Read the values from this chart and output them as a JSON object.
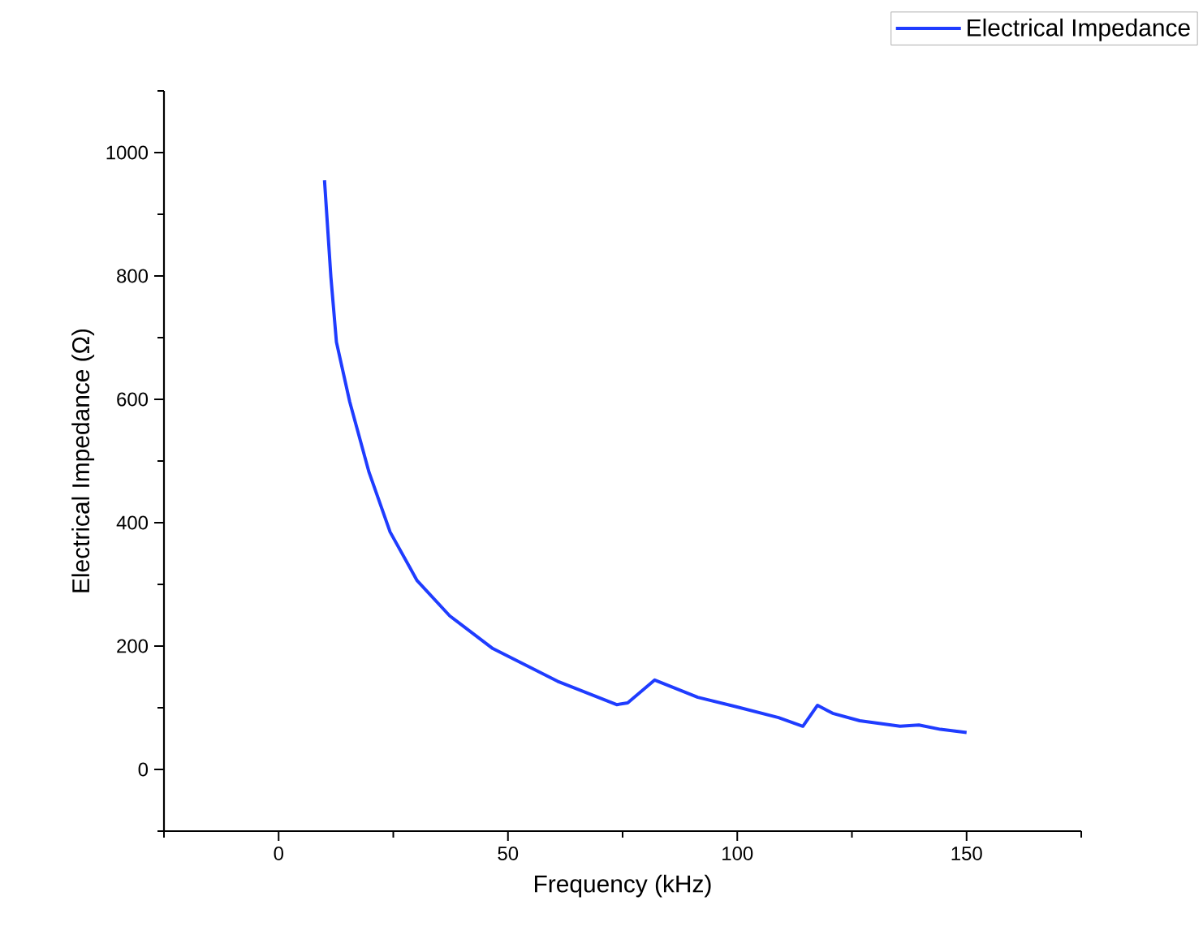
{
  "chart_data": {
    "type": "line",
    "xlabel": "Frequency (kHz)",
    "ylabel": "Electrical Impedance (Ω)",
    "xlim": [
      -25,
      175
    ],
    "xticks": [
      0,
      50,
      100,
      150
    ],
    "ylim": [
      -100,
      1100
    ],
    "yticks": [
      0,
      200,
      400,
      600,
      800,
      1000
    ],
    "grid": false,
    "legend": "top right",
    "marker": "none",
    "line_style": "solid",
    "series": [
      {
        "name": "Electrical Impedance",
        "color": "#1f3cff",
        "x": [
          10,
          11.4,
          12.6,
          15.5,
          19.7,
          24.3,
          30.2,
          37.3,
          46.7,
          60.8,
          73.7,
          76.1,
          82,
          91.4,
          99.6,
          109,
          114.3,
          117.5,
          120.8,
          126.7,
          135.5,
          139.6,
          144.3,
          150
        ],
        "values": [
          955,
          798,
          693,
          596,
          482,
          385,
          306,
          249,
          196,
          143,
          105,
          108,
          145,
          117,
          102,
          84,
          70,
          104,
          91,
          79,
          70,
          72,
          65,
          60
        ]
      }
    ]
  }
}
